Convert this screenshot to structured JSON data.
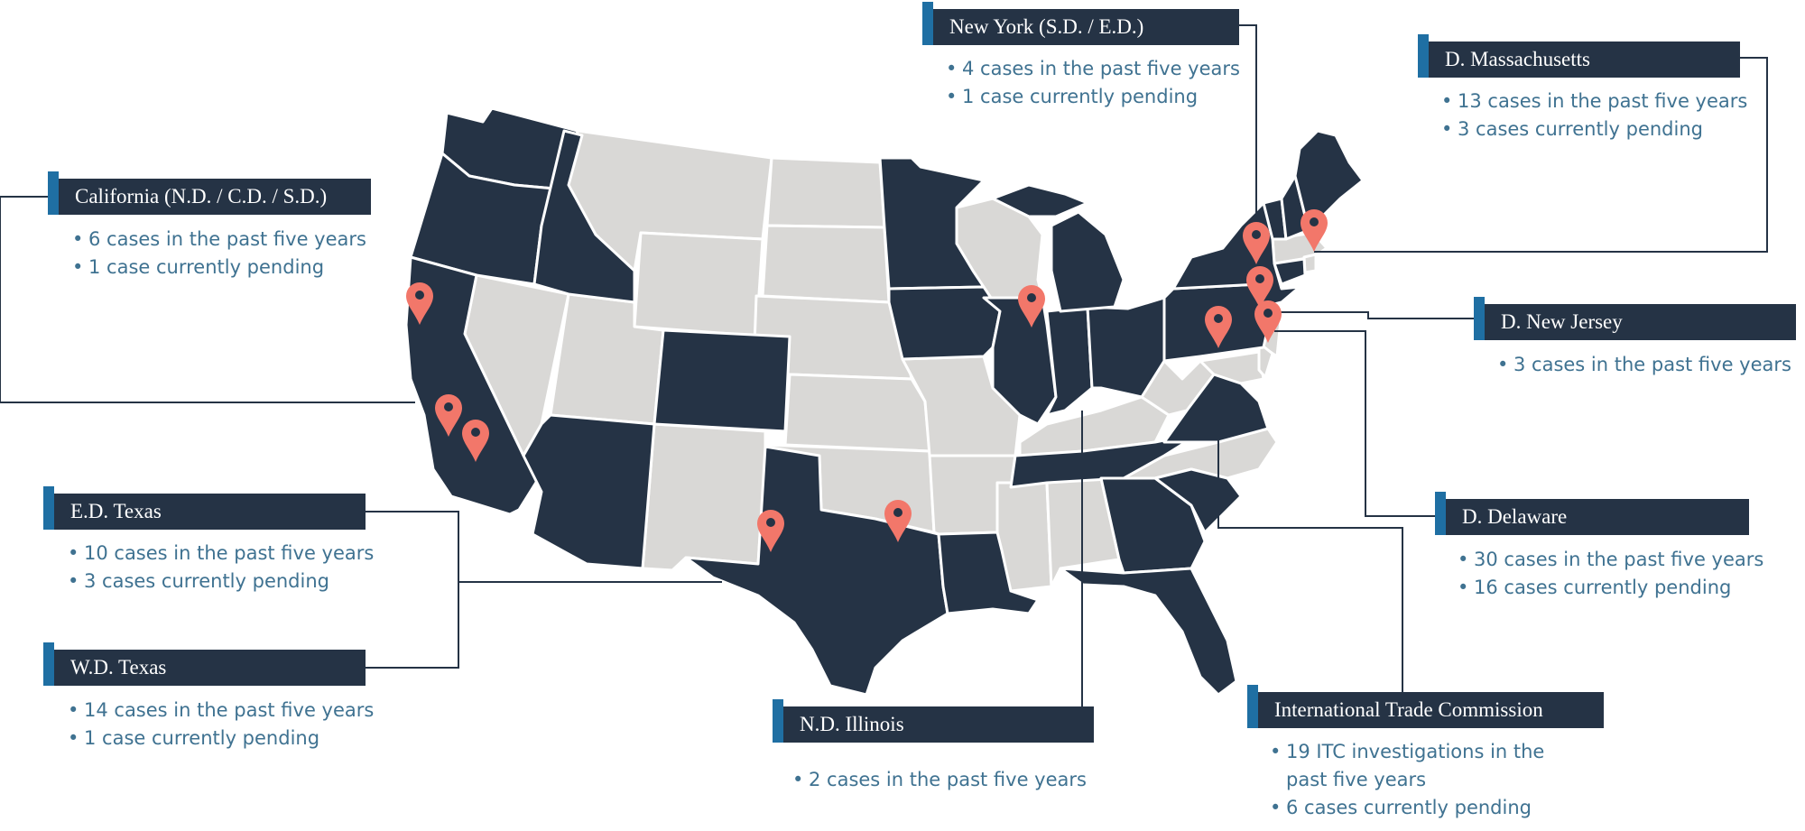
{
  "colors": {
    "highlighted_state": "#253345",
    "other_state": "#d9d8d6",
    "state_border": "#ffffff",
    "pin": "#f2776a",
    "label_box": "#253345",
    "label_accent": "#1f6fa3",
    "bullet_text": "#3f7291",
    "leader_line": "#253345"
  },
  "icons": {
    "pin": "map-pin-icon"
  },
  "courts": [
    {
      "id": "new-york",
      "title": "New York (S.D. / E.D.)",
      "bullets": [
        "4 cases in the past five years",
        "1 case currently pending"
      ]
    },
    {
      "id": "massachusetts",
      "title": "D. Massachusetts",
      "bullets": [
        "13 cases in the past five years",
        "3 cases currently pending"
      ]
    },
    {
      "id": "california",
      "title": "California (N.D. / C.D. / S.D.)",
      "bullets": [
        "6 cases in the past five years",
        "1 case currently pending"
      ]
    },
    {
      "id": "new-jersey",
      "title": "D. New Jersey",
      "bullets": [
        "3 cases in the past five years"
      ]
    },
    {
      "id": "ed-texas",
      "title": "E.D. Texas",
      "bullets": [
        "10 cases in the past five years",
        "3 cases currently pending"
      ]
    },
    {
      "id": "delaware",
      "title": "D. Delaware",
      "bullets": [
        "30 cases in the past five years",
        "16 cases currently pending"
      ]
    },
    {
      "id": "wd-texas",
      "title": "W.D. Texas",
      "bullets": [
        "14 cases in the past five years",
        "1 case currently pending"
      ]
    },
    {
      "id": "nd-illinois",
      "title": "N.D. Illinois",
      "bullets": [
        "2 cases in the past five years"
      ]
    },
    {
      "id": "itc",
      "title": "International Trade Commission",
      "bullets": [
        "19 ITC investigations in the",
        "past five years",
        "6 cases currently pending"
      ]
    }
  ],
  "highlighted_states": [
    "WA",
    "OR",
    "ID",
    "CA",
    "CO",
    "AZ",
    "TX",
    "MN",
    "IA",
    "IL",
    "MI",
    "IN",
    "OH",
    "LA",
    "TN",
    "GA",
    "SC",
    "FL",
    "VA",
    "PA",
    "NY",
    "VT",
    "ME",
    "NH",
    "CT"
  ],
  "pins": [
    "San Francisco",
    "Los Angeles",
    "San Diego",
    "Austin",
    "Waco",
    "Chicago",
    "New York",
    "Boston",
    "Philadelphia",
    "Washington DC",
    "Wilmington"
  ]
}
